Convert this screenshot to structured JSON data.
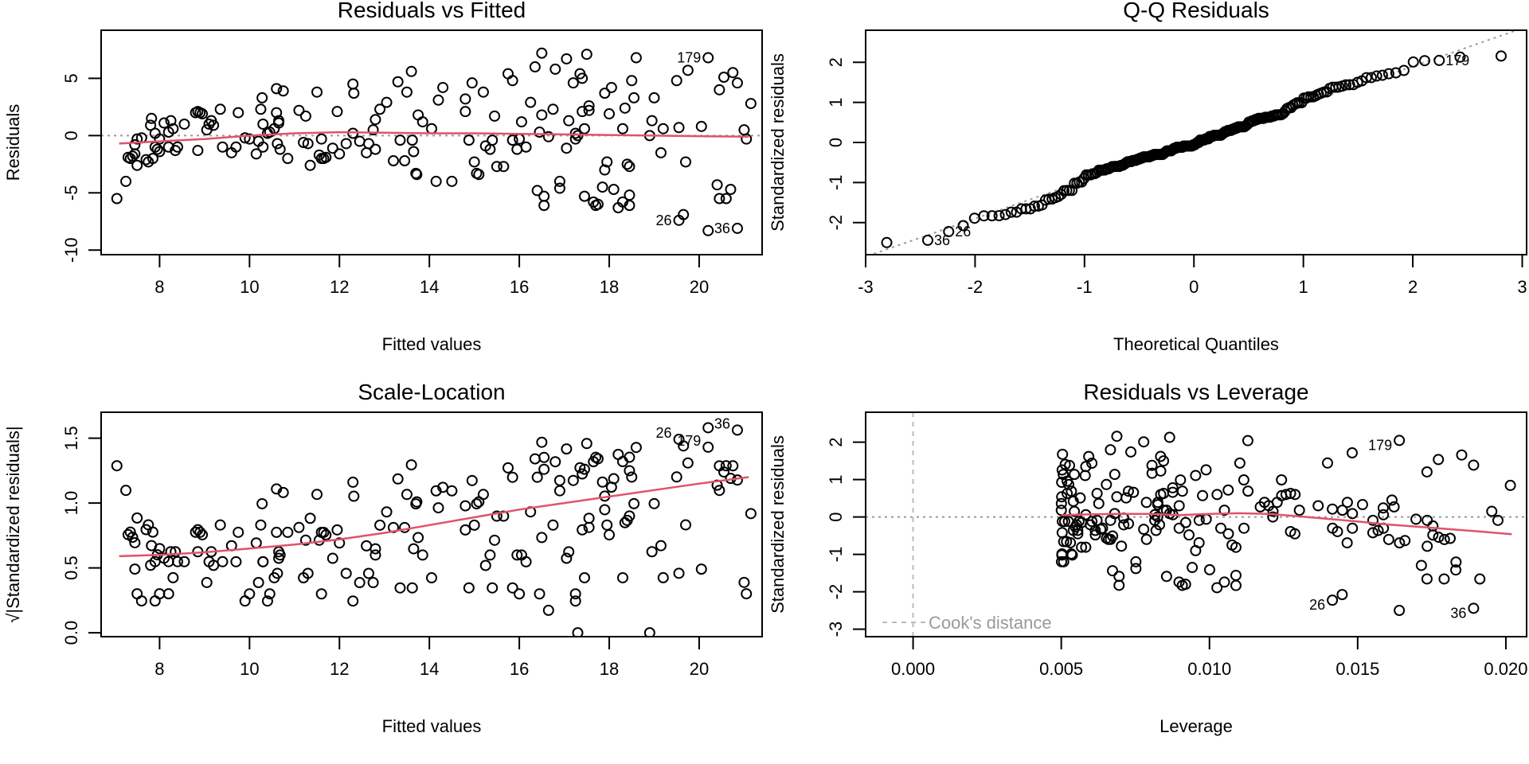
{
  "chart_data": [
    {
      "type": "scatter",
      "title": "Residuals vs Fitted",
      "xlabel": "Fitted values",
      "ylabel": "Residuals",
      "xlim": [
        6.7,
        21.4
      ],
      "ylim": [
        -10.4,
        9.2
      ],
      "xticks": [
        "8",
        "10",
        "12",
        "14",
        "16",
        "18",
        "20"
      ],
      "yticks": [
        "-10",
        "-5",
        "0",
        "5"
      ],
      "ref_line": 0,
      "smooth": [
        [
          7.1,
          -0.7
        ],
        [
          8,
          -0.5
        ],
        [
          9,
          -0.3
        ],
        [
          10,
          0.0
        ],
        [
          11,
          0.2
        ],
        [
          12,
          0.3
        ],
        [
          13,
          0.25
        ],
        [
          14,
          0.2
        ],
        [
          15,
          0.2
        ],
        [
          16,
          0.15
        ],
        [
          17,
          0.1
        ],
        [
          18,
          0.05
        ],
        [
          19,
          0.0
        ],
        [
          20,
          -0.05
        ],
        [
          21.1,
          -0.1
        ]
      ],
      "labels": [
        {
          "id": "26",
          "x": 19.55,
          "y": -7.4
        },
        {
          "id": "179",
          "x": 20.2,
          "y": -8.3
        },
        {
          "id": "36",
          "x": 20.85,
          "y": -8.1
        }
      ]
    },
    {
      "type": "scatter",
      "title": "Q-Q Residuals",
      "xlabel": "Theoretical Quantiles",
      "ylabel": "Standardized residuals",
      "xlim": [
        -3.0,
        3.04
      ],
      "ylim": [
        -2.8,
        2.8
      ],
      "xticks": [
        "-3",
        "-2",
        "-1",
        "0",
        "1",
        "2",
        "3"
      ],
      "yticks": [
        "-2",
        "-1",
        "0",
        "1",
        "2"
      ],
      "labels": [
        {
          "id": "179"
        },
        {
          "id": "36"
        },
        {
          "id": "26"
        }
      ]
    },
    {
      "type": "scatter",
      "title": "Scale-Location",
      "xlabel": "Fitted values",
      "ylabel": "√|Standardized residuals|",
      "xlim": [
        6.7,
        21.4
      ],
      "ylim": [
        -0.03,
        1.7
      ],
      "xticks": [
        "8",
        "10",
        "12",
        "14",
        "16",
        "18",
        "20"
      ],
      "yticks": [
        "0.0",
        "0.5",
        "1.0",
        "1.5"
      ],
      "smooth": [
        [
          7.1,
          0.59
        ],
        [
          8,
          0.6
        ],
        [
          9,
          0.62
        ],
        [
          10,
          0.65
        ],
        [
          11,
          0.68
        ],
        [
          12,
          0.72
        ],
        [
          13,
          0.77
        ],
        [
          14,
          0.83
        ],
        [
          15,
          0.89
        ],
        [
          16,
          0.95
        ],
        [
          17,
          1.0
        ],
        [
          18,
          1.05
        ],
        [
          19,
          1.1
        ],
        [
          20,
          1.15
        ],
        [
          21.1,
          1.2
        ]
      ],
      "labels": [
        {
          "id": "26"
        },
        {
          "id": "179"
        },
        {
          "id": "36"
        }
      ]
    },
    {
      "type": "scatter",
      "title": "Residuals vs Leverage",
      "xlabel": "Leverage",
      "ylabel": "Standardized residuals",
      "xlim": [
        -0.0016,
        0.0207
      ],
      "ylim": [
        -3.2,
        2.8
      ],
      "xticks": [
        "0.000",
        "0.005",
        "0.010",
        "0.015",
        "0.020"
      ],
      "yticks": [
        "-3",
        "-2",
        "-1",
        "0",
        "1",
        "2"
      ],
      "smooth": [
        [
          0.005,
          0.05
        ],
        [
          0.006,
          0.07
        ],
        [
          0.007,
          0.08
        ],
        [
          0.008,
          0.08
        ],
        [
          0.009,
          0.05
        ],
        [
          0.01,
          0.08
        ],
        [
          0.011,
          0.1
        ],
        [
          0.012,
          0.08
        ],
        [
          0.013,
          0.02
        ],
        [
          0.014,
          -0.05
        ],
        [
          0.015,
          -0.12
        ],
        [
          0.016,
          -0.2
        ],
        [
          0.017,
          -0.26
        ],
        [
          0.018,
          -0.32
        ],
        [
          0.019,
          -0.38
        ],
        [
          0.0202,
          -0.46
        ]
      ],
      "legend": "Cook's distance",
      "labels": [
        {
          "id": "26"
        },
        {
          "id": "179"
        },
        {
          "id": "36"
        }
      ]
    }
  ],
  "points": [
    [
      7.05,
      -5.5
    ],
    [
      7.25,
      -4.0
    ],
    [
      7.3,
      -1.9
    ],
    [
      7.35,
      -2.0
    ],
    [
      7.4,
      -1.8
    ],
    [
      7.45,
      -0.8
    ],
    [
      7.45,
      -1.6
    ],
    [
      7.5,
      -0.3
    ],
    [
      7.5,
      -2.6
    ],
    [
      7.6,
      -0.2
    ],
    [
      7.7,
      -2.1
    ],
    [
      7.75,
      -2.3
    ],
    [
      7.8,
      0.9
    ],
    [
      7.82,
      1.5
    ],
    [
      7.85,
      -2.0
    ],
    [
      7.9,
      -1.0
    ],
    [
      7.9,
      0.2
    ],
    [
      7.95,
      -1.2
    ],
    [
      8.0,
      -0.3
    ],
    [
      8.0,
      -1.4
    ],
    [
      8.1,
      1.1
    ],
    [
      8.2,
      -1.0
    ],
    [
      8.2,
      0.3
    ],
    [
      8.25,
      1.3
    ],
    [
      8.3,
      0.6
    ],
    [
      8.35,
      -1.3
    ],
    [
      8.4,
      -1.0
    ],
    [
      8.55,
      1.0
    ],
    [
      8.8,
      2.0
    ],
    [
      8.85,
      -1.3
    ],
    [
      8.85,
      2.1
    ],
    [
      8.9,
      2.0
    ],
    [
      8.95,
      1.9
    ],
    [
      9.05,
      0.5
    ],
    [
      9.1,
      1.0
    ],
    [
      9.15,
      1.3
    ],
    [
      9.2,
      0.9
    ],
    [
      9.35,
      2.3
    ],
    [
      9.4,
      -1.0
    ],
    [
      9.6,
      -1.5
    ],
    [
      9.7,
      -1.0
    ],
    [
      9.75,
      2.0
    ],
    [
      9.9,
      -0.2
    ],
    [
      10.0,
      -0.3
    ],
    [
      10.15,
      -1.6
    ],
    [
      10.2,
      -0.5
    ],
    [
      10.25,
      2.3
    ],
    [
      10.28,
      3.3
    ],
    [
      10.3,
      1.0
    ],
    [
      10.3,
      -1.0
    ],
    [
      10.4,
      0.2
    ],
    [
      10.45,
      0.3
    ],
    [
      10.55,
      0.6
    ],
    [
      10.6,
      4.1
    ],
    [
      10.6,
      2.0
    ],
    [
      10.62,
      -0.7
    ],
    [
      10.65,
      1.1
    ],
    [
      10.65,
      1.3
    ],
    [
      10.68,
      -1.2
    ],
    [
      10.75,
      3.9
    ],
    [
      10.85,
      -2.0
    ],
    [
      11.1,
      2.2
    ],
    [
      11.2,
      -0.6
    ],
    [
      11.25,
      1.7
    ],
    [
      11.3,
      -0.7
    ],
    [
      11.35,
      -2.6
    ],
    [
      11.5,
      3.8
    ],
    [
      11.55,
      -1.7
    ],
    [
      11.6,
      -2.0
    ],
    [
      11.6,
      -0.3
    ],
    [
      11.65,
      -2.0
    ],
    [
      11.7,
      -1.9
    ],
    [
      11.85,
      -1.1
    ],
    [
      11.95,
      2.1
    ],
    [
      12.0,
      -1.6
    ],
    [
      12.15,
      -0.7
    ],
    [
      12.3,
      4.5
    ],
    [
      12.3,
      0.2
    ],
    [
      12.32,
      3.7
    ],
    [
      12.45,
      -0.5
    ],
    [
      12.6,
      -1.5
    ],
    [
      12.65,
      -0.7
    ],
    [
      12.75,
      0.5
    ],
    [
      12.8,
      1.4
    ],
    [
      12.8,
      -1.2
    ],
    [
      12.9,
      2.3
    ],
    [
      13.05,
      2.9
    ],
    [
      13.2,
      -2.2
    ],
    [
      13.3,
      4.7
    ],
    [
      13.35,
      -0.4
    ],
    [
      13.45,
      -2.2
    ],
    [
      13.5,
      3.8
    ],
    [
      13.6,
      5.6
    ],
    [
      13.62,
      -0.4
    ],
    [
      13.65,
      -1.4
    ],
    [
      13.7,
      -3.3
    ],
    [
      13.72,
      -3.4
    ],
    [
      13.75,
      1.8
    ],
    [
      13.85,
      1.2
    ],
    [
      14.05,
      0.6
    ],
    [
      14.15,
      -4.0
    ],
    [
      14.2,
      3.1
    ],
    [
      14.3,
      4.2
    ],
    [
      14.5,
      -4.0
    ],
    [
      14.8,
      3.2
    ],
    [
      14.8,
      2.1
    ],
    [
      14.88,
      -0.4
    ],
    [
      14.95,
      4.6
    ],
    [
      15.0,
      -2.3
    ],
    [
      15.05,
      -3.3
    ],
    [
      15.1,
      -3.4
    ],
    [
      15.2,
      3.8
    ],
    [
      15.25,
      -0.9
    ],
    [
      15.35,
      -1.2
    ],
    [
      15.4,
      -0.4
    ],
    [
      15.45,
      1.7
    ],
    [
      15.5,
      -2.7
    ],
    [
      15.65,
      -2.7
    ],
    [
      15.75,
      5.4
    ],
    [
      15.85,
      -0.4
    ],
    [
      15.85,
      4.8
    ],
    [
      15.95,
      -1.2
    ],
    [
      16.0,
      -0.3
    ],
    [
      16.05,
      1.2
    ],
    [
      16.15,
      -1.0
    ],
    [
      16.25,
      2.9
    ],
    [
      16.35,
      6.0
    ],
    [
      16.4,
      -4.8
    ],
    [
      16.45,
      0.3
    ],
    [
      16.5,
      7.2
    ],
    [
      16.5,
      1.8
    ],
    [
      16.55,
      -5.3
    ],
    [
      16.55,
      -6.1
    ],
    [
      16.65,
      -0.1
    ],
    [
      16.75,
      2.3
    ],
    [
      16.8,
      5.8
    ],
    [
      16.9,
      -4.0
    ],
    [
      16.9,
      -4.6
    ],
    [
      17.05,
      6.7
    ],
    [
      17.05,
      -1.1
    ],
    [
      17.1,
      1.3
    ],
    [
      17.2,
      4.6
    ],
    [
      17.25,
      -0.3
    ],
    [
      17.25,
      0.2
    ],
    [
      17.35,
      5.4
    ],
    [
      17.4,
      5.0
    ],
    [
      17.4,
      2.1
    ],
    [
      17.45,
      -5.3
    ],
    [
      17.45,
      0.6
    ],
    [
      17.5,
      7.1
    ],
    [
      17.55,
      2.6
    ],
    [
      17.55,
      2.2
    ],
    [
      17.65,
      -5.8
    ],
    [
      17.7,
      -6.1
    ],
    [
      17.75,
      -6.0
    ],
    [
      17.85,
      -4.5
    ],
    [
      17.9,
      -3.0
    ],
    [
      17.9,
      3.7
    ],
    [
      17.95,
      -2.3
    ],
    [
      18.0,
      1.9
    ],
    [
      18.05,
      4.2
    ],
    [
      18.1,
      -4.7
    ],
    [
      18.2,
      -6.3
    ],
    [
      18.3,
      -5.8
    ],
    [
      18.3,
      0.6
    ],
    [
      18.35,
      2.4
    ],
    [
      18.4,
      -2.5
    ],
    [
      18.45,
      -2.7
    ],
    [
      18.45,
      -6.1
    ],
    [
      18.45,
      -5.2
    ],
    [
      18.5,
      4.8
    ],
    [
      18.55,
      3.3
    ],
    [
      18.6,
      6.8
    ],
    [
      18.9,
      0.0
    ],
    [
      18.95,
      1.3
    ],
    [
      19.0,
      3.3
    ],
    [
      19.15,
      -1.5
    ],
    [
      19.2,
      0.6
    ],
    [
      19.55,
      0.7
    ],
    [
      19.5,
      4.8
    ],
    [
      19.55,
      -7.4
    ],
    [
      19.65,
      -6.9
    ],
    [
      19.7,
      -2.3
    ],
    [
      19.75,
      5.7
    ],
    [
      20.05,
      0.8
    ],
    [
      20.2,
      6.8
    ],
    [
      20.2,
      -8.3
    ],
    [
      20.4,
      -4.3
    ],
    [
      20.45,
      4.0
    ],
    [
      20.45,
      -5.5
    ],
    [
      20.55,
      5.1
    ],
    [
      20.6,
      -5.5
    ],
    [
      20.7,
      -4.7
    ],
    [
      20.75,
      5.5
    ],
    [
      20.85,
      4.6
    ],
    [
      20.85,
      -8.1
    ],
    [
      21.0,
      0.5
    ],
    [
      21.05,
      -0.3
    ],
    [
      21.15,
      2.8
    ],
    [
      17.3,
      0.0
    ]
  ],
  "label_ids": {
    "26": 180,
    "179": 185,
    "36": 195
  }
}
